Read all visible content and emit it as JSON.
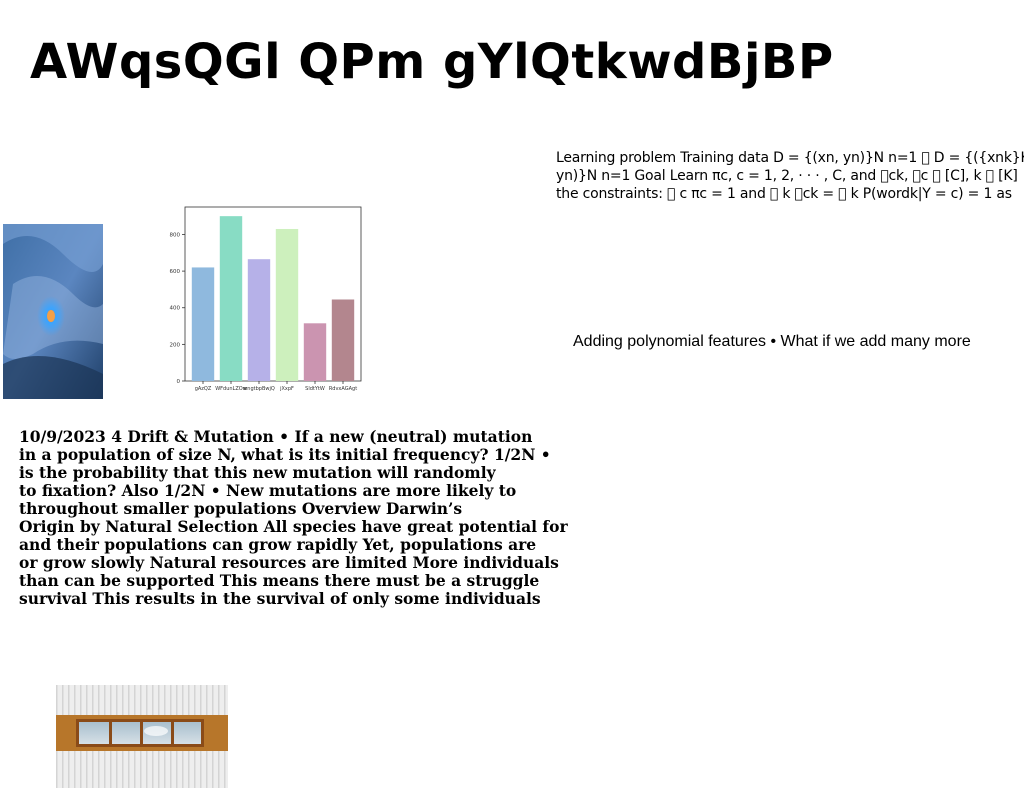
{
  "page_title": "AWqsQGl QPm gYlQtkwdBjBP",
  "learning_text": "Learning problem Training data D = {(xn, yn)}N n=1 \u0000 D = {({xnk}K\nyn)}N n=1 Goal Learn πc, c = 1, 2, · · · , C, and \u0000ck, \u0000c \u0000 [C], k \u0000 [K]\nthe constraints: \u0000 c πc = 1 and \u0000 k \u0000ck = \u0000 k P(wordk|Y = c) = 1 as",
  "polynomial_text": "Adding polynomial features • What if we add many more",
  "drift_text": "10/9/2023 4 Drift & Mutation • If a new (neutral) mutation\nin a population of size N, what is its initial frequency? 1/2N •\nis the probability that this new mutation will randomly\nto fixation? Also 1/2N • New mutations are more likely to\nthroughout smaller populations Overview Darwin’s\nOrigin by Natural Selection All species have great potential for\nand their populations can grow rapidly Yet, populations are\nor grow slowly Natural resources are limited More individuals\nthan can be supported This means there must be a struggle\nsurvival This results in the survival of only some individuals",
  "chart_data": {
    "type": "bar",
    "categories": [
      "gAzQZ",
      "WFdunLZOw",
      "wngtbpBwjQ",
      "jXxpF",
      "SldtYtW",
      "RdvxAGAgt"
    ],
    "values": [
      620,
      900,
      665,
      830,
      315,
      445
    ],
    "colors": [
      "#8fb9de",
      "#88dcc4",
      "#b6b1e8",
      "#cdf0bd",
      "#cb94b0",
      "#b3868e"
    ],
    "yticks": [
      "0",
      "200",
      "400",
      "600",
      "800"
    ],
    "ylim": [
      0,
      950
    ]
  }
}
